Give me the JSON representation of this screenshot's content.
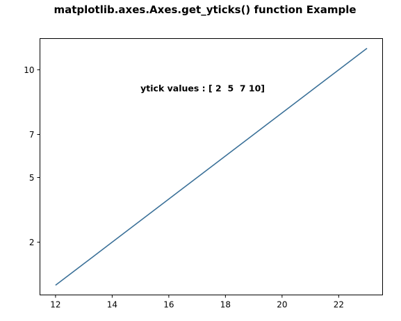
{
  "chart_data": {
    "type": "line",
    "title": "matplotlib.axes.Axes.get_yticks() function Example",
    "xlabel": "",
    "ylabel": "",
    "xlim": [
      11.45,
      23.55
    ],
    "ylim": [
      -0.45,
      11.45
    ],
    "xticks": [
      12,
      14,
      16,
      18,
      20,
      22
    ],
    "yticks": [
      2,
      5,
      7,
      10
    ],
    "grid": false,
    "legend": "none",
    "annotation": {
      "text": "ytick values : [ 2  5  7 10]",
      "x": 15,
      "y": 9
    },
    "series": [
      {
        "color": "#3a7098",
        "x": [
          12,
          13,
          14,
          15,
          16,
          17,
          18,
          19,
          20,
          21,
          22,
          23
        ],
        "y": [
          0,
          1,
          2,
          3,
          4,
          5,
          6,
          7,
          8,
          9,
          10,
          11
        ]
      }
    ]
  }
}
